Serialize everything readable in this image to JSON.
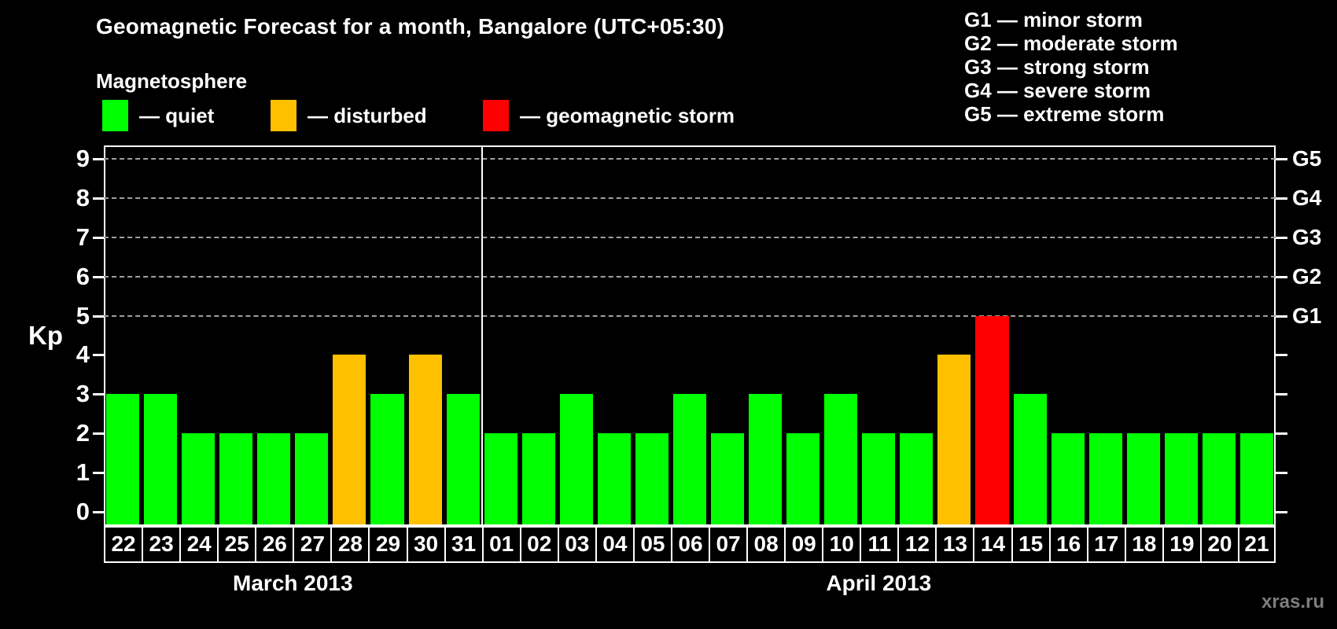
{
  "header": {
    "title": "Geomagnetic Forecast for a month, Bangalore (UTC+05:30)",
    "subtitle": "Magnetosphere"
  },
  "magnetosphere_legend": [
    {
      "status": "quiet",
      "label": "— quiet",
      "color": "#00ff00"
    },
    {
      "status": "disturbed",
      "label": "— disturbed",
      "color": "#ffc000"
    },
    {
      "status": "storm",
      "label": "— geomagnetic storm",
      "color": "#ff0000"
    }
  ],
  "storm_scale_legend": [
    "G1 — minor storm",
    "G2 — moderate storm",
    "G3 — strong storm",
    "G4 — severe storm",
    "G5 — extreme storm"
  ],
  "watermark": "xras.ru",
  "chart_data": {
    "type": "bar",
    "title": "Geomagnetic Forecast for a month, Bangalore (UTC+05:30)",
    "ylabel": "Kp",
    "ylim": [
      0,
      9
    ],
    "yticks": [
      0,
      1,
      2,
      3,
      4,
      5,
      6,
      7,
      8,
      9
    ],
    "gridlines_at": [
      5,
      6,
      7,
      8,
      9
    ],
    "grid": "dashed horizontal at storm levels only",
    "legend_position": "top",
    "right_axis_labels": [
      {
        "value": 5,
        "label": "G1"
      },
      {
        "value": 6,
        "label": "G2"
      },
      {
        "value": 7,
        "label": "G3"
      },
      {
        "value": 8,
        "label": "G4"
      },
      {
        "value": 9,
        "label": "G5"
      }
    ],
    "months": [
      {
        "label": "March 2013",
        "days": 10
      },
      {
        "label": "April 2013",
        "days": 21
      }
    ],
    "categories": [
      "22",
      "23",
      "24",
      "25",
      "26",
      "27",
      "28",
      "29",
      "30",
      "31",
      "01",
      "02",
      "03",
      "04",
      "05",
      "06",
      "07",
      "08",
      "09",
      "10",
      "11",
      "12",
      "13",
      "14",
      "15",
      "16",
      "17",
      "18",
      "19",
      "20",
      "21"
    ],
    "values": [
      3,
      3,
      2,
      2,
      2,
      2,
      4,
      3,
      4,
      3,
      2,
      2,
      3,
      2,
      2,
      3,
      2,
      3,
      2,
      3,
      2,
      2,
      4,
      5,
      3,
      2,
      2,
      2,
      2,
      2,
      2
    ],
    "statuses": [
      "quiet",
      "quiet",
      "quiet",
      "quiet",
      "quiet",
      "quiet",
      "disturbed",
      "quiet",
      "disturbed",
      "quiet",
      "quiet",
      "quiet",
      "quiet",
      "quiet",
      "quiet",
      "quiet",
      "quiet",
      "quiet",
      "quiet",
      "quiet",
      "quiet",
      "quiet",
      "disturbed",
      "storm",
      "quiet",
      "quiet",
      "quiet",
      "quiet",
      "quiet",
      "quiet",
      "quiet"
    ],
    "status_colors": {
      "quiet": "#00ff00",
      "disturbed": "#ffc000",
      "storm": "#ff0000"
    }
  }
}
